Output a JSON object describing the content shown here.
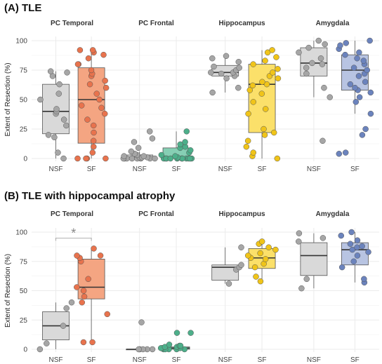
{
  "chart_data": [
    {
      "type": "box",
      "title": "(A) TLE",
      "ylabel": "Extent of Resection (%)",
      "ylim": [
        0,
        100
      ],
      "yticks": [
        0,
        25,
        50,
        75,
        100
      ],
      "categories": [
        "NSF",
        "SF"
      ],
      "colors": {
        "NSF": "#d9d9d9",
        "SF_by_facet": [
          "#f4a582",
          "#66c2a5",
          "#fed639",
          "#8da0cb"
        ],
        "NSF_points": "#a6a6a6",
        "SF_points_by_facet": [
          "#e8734d",
          "#4daf8a",
          "#f0c419",
          "#6b83bd"
        ]
      },
      "grid": true,
      "facets": [
        {
          "name": "PC Temporal",
          "groups": [
            {
              "name": "NSF",
              "q1": 21,
              "median": 40,
              "q3": 63,
              "whisker_low": 0,
              "whisker_high": 74,
              "points": [
                0,
                5,
                18,
                20,
                28,
                33,
                38,
                40,
                42,
                50,
                55,
                63,
                70,
                73,
                74
              ]
            },
            {
              "name": "SF",
              "q1": 13,
              "median": 50,
              "q3": 77,
              "whisker_low": 0,
              "whisker_high": 92,
              "points": [
                0,
                0,
                0,
                0,
                5,
                10,
                15,
                22,
                28,
                33,
                38,
                43,
                45,
                50,
                55,
                60,
                63,
                66,
                70,
                72,
                75,
                80,
                80,
                85,
                88,
                90,
                92,
                92
              ]
            }
          ]
        },
        {
          "name": "PC Frontal",
          "groups": [
            {
              "name": "NSF",
              "q1": 0,
              "median": 1,
              "q3": 3,
              "whisker_low": 0,
              "whisker_high": 6,
              "points": [
                0,
                0,
                0,
                0,
                0,
                0,
                0,
                0,
                1,
                1,
                1,
                2,
                2,
                3,
                4,
                6,
                9,
                14,
                17,
                23
              ]
            },
            {
              "name": "SF",
              "q1": 0,
              "median": 1,
              "q3": 9,
              "whisker_low": 0,
              "whisker_high": 23,
              "points": [
                0,
                0,
                0,
                0,
                0,
                0,
                0,
                0,
                0,
                0,
                0,
                0,
                0,
                0,
                0,
                1,
                2,
                3,
                5,
                7,
                9,
                10,
                12,
                14,
                23
              ]
            }
          ]
        },
        {
          "name": "Hippocampus",
          "groups": [
            {
              "name": "NSF",
              "q1": 70,
              "median": 73,
              "q3": 79,
              "whisker_low": 56,
              "whisker_high": 87,
              "points": [
                56,
                60,
                68,
                70,
                72,
                73,
                73,
                75,
                77,
                78,
                82,
                85,
                87
              ]
            },
            {
              "name": "SF",
              "q1": 22,
              "median": 63,
              "q3": 80,
              "whisker_low": 0,
              "whisker_high": 92,
              "points": [
                0,
                2,
                5,
                10,
                15,
                20,
                22,
                25,
                38,
                42,
                48,
                55,
                58,
                62,
                63,
                65,
                68,
                70,
                73,
                76,
                80,
                83,
                86,
                90,
                92
              ]
            }
          ]
        },
        {
          "name": "Amygdala",
          "groups": [
            {
              "name": "NSF",
              "q1": 70,
              "median": 81,
              "q3": 94,
              "whisker_low": 52,
              "whisker_high": 100,
              "points": [
                15,
                52,
                60,
                72,
                77,
                80,
                81,
                85,
                90,
                94,
                97,
                100
              ]
            },
            {
              "name": "SF",
              "q1": 58,
              "median": 75,
              "q3": 88,
              "whisker_low": 38,
              "whisker_high": 100,
              "points": [
                4,
                5,
                20,
                25,
                38,
                48,
                52,
                56,
                58,
                60,
                63,
                65,
                70,
                72,
                75,
                77,
                80,
                83,
                85,
                88,
                90,
                93,
                96,
                98,
                100
              ]
            }
          ]
        }
      ]
    },
    {
      "type": "box",
      "title": "(B) TLE with hippocampal atrophy",
      "ylabel": "Extent of Resection (%)",
      "ylim": [
        0,
        100
      ],
      "yticks": [
        0,
        25,
        50,
        75,
        100
      ],
      "categories": [
        "NSF",
        "SF"
      ],
      "grid": true,
      "annotations": [
        {
          "facet": "PC Temporal",
          "text": "*",
          "between": [
            "NSF",
            "SF"
          ],
          "y": 95
        }
      ],
      "facets": [
        {
          "name": "PC Temporal",
          "groups": [
            {
              "name": "NSF",
              "q1": 8,
              "median": 20,
              "q3": 32,
              "whisker_low": 0,
              "whisker_high": 40,
              "points": [
                0,
                5,
                20,
                35,
                40
              ]
            },
            {
              "name": "SF",
              "q1": 43,
              "median": 53,
              "q3": 77,
              "whisker_low": 6,
              "whisker_high": 86,
              "points": [
                6,
                6,
                30,
                40,
                45,
                50,
                53,
                60,
                75,
                78,
                80,
                80,
                86
              ]
            }
          ]
        },
        {
          "name": "PC Frontal",
          "groups": [
            {
              "name": "NSF",
              "q1": 0,
              "median": 0,
              "q3": 0,
              "whisker_low": 0,
              "whisker_high": 0,
              "points": [
                0,
                0,
                0,
                0,
                0,
                23
              ]
            },
            {
              "name": "SF",
              "q1": 0,
              "median": 1,
              "q3": 2,
              "whisker_low": 0,
              "whisker_high": 4,
              "points": [
                0,
                0,
                0,
                0,
                0,
                1,
                1,
                1,
                2,
                2,
                3,
                3,
                4,
                14,
                14
              ]
            }
          ]
        },
        {
          "name": "Hippocampus",
          "groups": [
            {
              "name": "NSF",
              "q1": 59,
              "median": 70,
              "q3": 72,
              "whisker_low": 56,
              "whisker_high": 87,
              "points": [
                56,
                68,
                70,
                72,
                87
              ]
            },
            {
              "name": "SF",
              "q1": 69,
              "median": 78,
              "q3": 86,
              "whisker_low": 58,
              "whisker_high": 92,
              "points": [
                58,
                62,
                70,
                73,
                77,
                78,
                80,
                82,
                85,
                87,
                90,
                92
              ]
            }
          ]
        },
        {
          "name": "Amygdala",
          "groups": [
            {
              "name": "NSF",
              "q1": 63,
              "median": 80,
              "q3": 91,
              "whisker_low": 52,
              "whisker_high": 99,
              "points": [
                52,
                60,
                92,
                95,
                99
              ]
            },
            {
              "name": "SF",
              "q1": 72,
              "median": 85,
              "q3": 91,
              "whisker_low": 57,
              "whisker_high": 100,
              "points": [
                57,
                60,
                70,
                75,
                80,
                83,
                85,
                87,
                88,
                90,
                93,
                97,
                100
              ]
            }
          ]
        }
      ]
    }
  ]
}
